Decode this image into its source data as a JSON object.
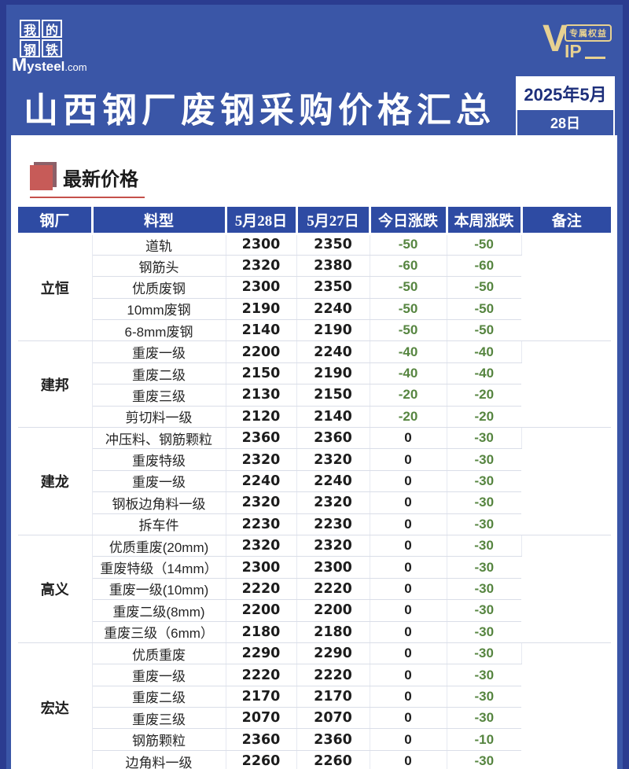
{
  "colors": {
    "frame": "#2B3C90",
    "background_blue": "#3A56A7",
    "header_row_blue": "#2E4BA3",
    "gold": "#E7D191",
    "red_accent": "#C5504B",
    "green_change": "#568540"
  },
  "logo": {
    "cells": [
      "我",
      "的",
      "钢",
      "铁"
    ],
    "domain_m": "M",
    "domain_rest": "ysteel",
    "domain_suffix": ".com"
  },
  "vip": {
    "v": "V",
    "ip": "IP",
    "badge": "专属权益"
  },
  "header": {
    "title": "山西钢厂废钢采购价格汇总",
    "date_month": "2025年5月",
    "date_day": "28日"
  },
  "section": {
    "title": "最新价格"
  },
  "table": {
    "columns": [
      "钢厂",
      "料型",
      "5月28日",
      "5月27日",
      "今日涨跌",
      "本周涨跌",
      "备注"
    ],
    "groups": [
      {
        "mill": "立恒",
        "note": "",
        "rows": [
          {
            "material": "道轨",
            "p28": "2300",
            "p27": "2350",
            "day": "-50",
            "week": "-50"
          },
          {
            "material": "钢筋头",
            "p28": "2320",
            "p27": "2380",
            "day": "-60",
            "week": "-60"
          },
          {
            "material": "优质废钢",
            "p28": "2300",
            "p27": "2350",
            "day": "-50",
            "week": "-50"
          },
          {
            "material": "10mm废钢",
            "p28": "2190",
            "p27": "2240",
            "day": "-50",
            "week": "-50"
          },
          {
            "material": "6-8mm废钢",
            "p28": "2140",
            "p27": "2190",
            "day": "-50",
            "week": "-50"
          }
        ]
      },
      {
        "mill": "建邦",
        "note": "",
        "rows": [
          {
            "material": "重废一级",
            "p28": "2200",
            "p27": "2240",
            "day": "-40",
            "week": "-40"
          },
          {
            "material": "重废二级",
            "p28": "2150",
            "p27": "2190",
            "day": "-40",
            "week": "-40"
          },
          {
            "material": "重废三级",
            "p28": "2130",
            "p27": "2150",
            "day": "-20",
            "week": "-20"
          },
          {
            "material": "剪切料一级",
            "p28": "2120",
            "p27": "2140",
            "day": "-20",
            "week": "-20"
          }
        ]
      },
      {
        "mill": "建龙",
        "note": "",
        "rows": [
          {
            "material": "冲压料、钢筋颗粒",
            "p28": "2360",
            "p27": "2360",
            "day": "0",
            "week": "-30"
          },
          {
            "material": "重废特级",
            "p28": "2320",
            "p27": "2320",
            "day": "0",
            "week": "-30"
          },
          {
            "material": "重废一级",
            "p28": "2240",
            "p27": "2240",
            "day": "0",
            "week": "-30"
          },
          {
            "material": "钢板边角料一级",
            "p28": "2320",
            "p27": "2320",
            "day": "0",
            "week": "-30"
          },
          {
            "material": "拆车件",
            "p28": "2230",
            "p27": "2230",
            "day": "0",
            "week": "-30"
          }
        ]
      },
      {
        "mill": "高义",
        "note": "",
        "rows": [
          {
            "material": "优质重废(20mm)",
            "p28": "2320",
            "p27": "2320",
            "day": "0",
            "week": "-30"
          },
          {
            "material": "重废特级（14mm）",
            "p28": "2300",
            "p27": "2300",
            "day": "0",
            "week": "-30"
          },
          {
            "material": "重废一级(10mm)",
            "p28": "2220",
            "p27": "2220",
            "day": "0",
            "week": "-30"
          },
          {
            "material": "重废二级(8mm)",
            "p28": "2200",
            "p27": "2200",
            "day": "0",
            "week": "-30"
          },
          {
            "material": "重废三级（6mm）",
            "p28": "2180",
            "p27": "2180",
            "day": "0",
            "week": "-30"
          }
        ]
      },
      {
        "mill": "宏达",
        "note": "",
        "rows": [
          {
            "material": "优质重废",
            "p28": "2290",
            "p27": "2290",
            "day": "0",
            "week": "-30"
          },
          {
            "material": "重废一级",
            "p28": "2220",
            "p27": "2220",
            "day": "0",
            "week": "-30"
          },
          {
            "material": "重废二级",
            "p28": "2170",
            "p27": "2170",
            "day": "0",
            "week": "-30"
          },
          {
            "material": "重废三级",
            "p28": "2070",
            "p27": "2070",
            "day": "0",
            "week": "-30"
          },
          {
            "material": "钢筋颗粒",
            "p28": "2360",
            "p27": "2360",
            "day": "0",
            "week": "-10"
          },
          {
            "material": "边角料一级",
            "p28": "2260",
            "p27": "2260",
            "day": "0",
            "week": "-30"
          }
        ]
      }
    ]
  }
}
